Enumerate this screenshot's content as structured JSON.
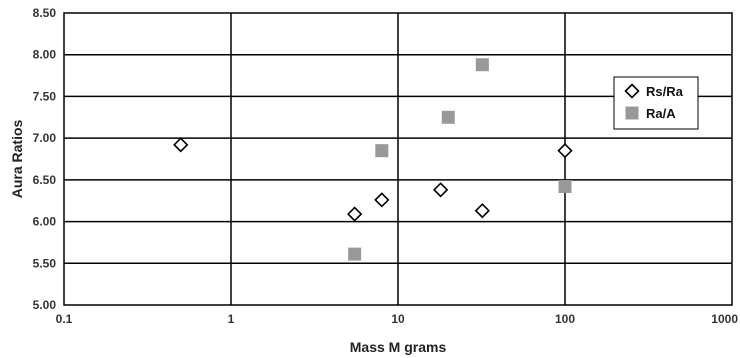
{
  "chart_data": {
    "type": "scatter",
    "title": "",
    "xlabel": "Mass M grams",
    "ylabel": "Aura Ratios",
    "xscale": "log",
    "xlim": [
      0.1,
      1000
    ],
    "ylim": [
      5.0,
      8.5
    ],
    "x_ticks": [
      "0.1",
      "1",
      "10",
      "100",
      "1000"
    ],
    "y_ticks": [
      "5.00",
      "5.50",
      "6.00",
      "6.50",
      "7.00",
      "7.50",
      "8.00",
      "8.50"
    ],
    "grid": true,
    "legend_position": "right",
    "series": [
      {
        "name": "Rs/Ra",
        "marker": "diamond-open",
        "color": "#000000",
        "points": [
          {
            "x": 0.5,
            "y": 6.92
          },
          {
            "x": 5.5,
            "y": 6.09
          },
          {
            "x": 8,
            "y": 6.26
          },
          {
            "x": 18,
            "y": 6.38
          },
          {
            "x": 32,
            "y": 6.13
          },
          {
            "x": 100,
            "y": 6.85
          }
        ]
      },
      {
        "name": "Ra/A",
        "marker": "square-filled",
        "color": "#999999",
        "points": [
          {
            "x": 5.5,
            "y": 5.61
          },
          {
            "x": 8,
            "y": 6.85
          },
          {
            "x": 20,
            "y": 7.25
          },
          {
            "x": 32,
            "y": 7.88
          },
          {
            "x": 100,
            "y": 6.42
          }
        ]
      }
    ]
  }
}
